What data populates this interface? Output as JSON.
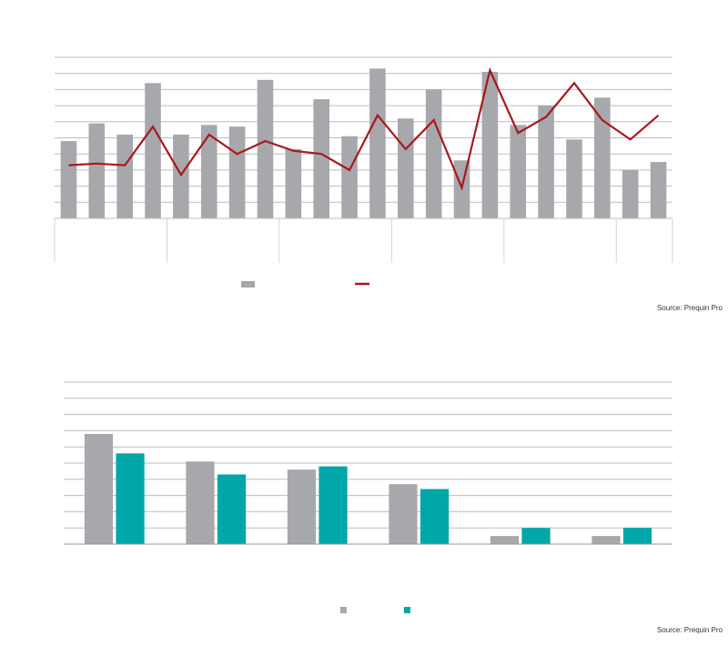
{
  "colors": {
    "bar_gray": "#a7a8ab",
    "line_red": "#a8181f",
    "bar_teal": "#00a7a8",
    "grid": "#bdbdbd"
  },
  "chart_data": [
    {
      "type": "bar",
      "title": "",
      "xlabel": "",
      "ylabel": "",
      "ylim": [
        0,
        10
      ],
      "y2lim": [
        0,
        10
      ],
      "grid": true,
      "legend_position": "bottom-center",
      "group_sizes": [
        4,
        4,
        4,
        4,
        4,
        2
      ],
      "series": [
        {
          "name": "",
          "type": "bar",
          "color": "#a7a8ab",
          "values": [
            4.8,
            5.9,
            5.2,
            8.4,
            5.2,
            5.8,
            5.7,
            8.6,
            4.3,
            7.4,
            5.1,
            9.3,
            6.2,
            8.0,
            3.6,
            9.1,
            5.8,
            7.0,
            4.9,
            7.5,
            3.0,
            3.5
          ]
        },
        {
          "name": "",
          "type": "line",
          "color": "#a8181f",
          "values": [
            3.3,
            3.4,
            3.3,
            5.7,
            2.7,
            5.2,
            4.0,
            4.8,
            4.2,
            4.0,
            3.0,
            6.4,
            4.3,
            6.1,
            1.9,
            9.2,
            5.3,
            6.3,
            8.4,
            6.1,
            4.9,
            6.4
          ]
        }
      ]
    },
    {
      "type": "bar",
      "title": "",
      "xlabel": "",
      "ylabel": "",
      "categories": [
        "",
        "",
        "",
        "",
        "",
        ""
      ],
      "ylim": [
        0,
        10
      ],
      "grid": true,
      "legend_position": "bottom-center",
      "series": [
        {
          "name": "",
          "color": "#a7a8ab",
          "values": [
            6.8,
            5.1,
            4.6,
            3.7,
            0.5,
            0.5
          ]
        },
        {
          "name": "",
          "color": "#00a7a8",
          "values": [
            5.6,
            4.3,
            4.8,
            3.4,
            1.0,
            1.0
          ]
        }
      ]
    }
  ],
  "sources": {
    "top": "Source: Prequin Pro",
    "bottom": "Source: Prequin Pro"
  }
}
